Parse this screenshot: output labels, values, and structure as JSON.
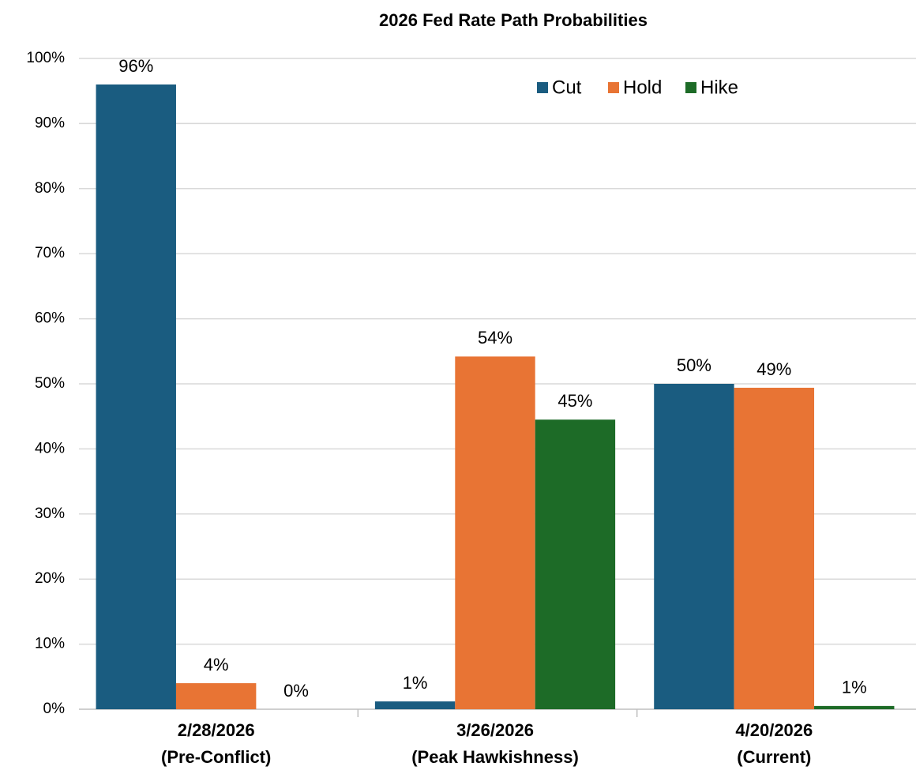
{
  "chart_data": {
    "type": "bar",
    "title": "2026 Fed Rate Path Probabilities",
    "categories": [
      "2/28/2026",
      "3/26/2026",
      "4/20/2026"
    ],
    "category_sublabels": [
      "(Pre-Conflict)",
      "(Peak Hawkishness)",
      "(Current)"
    ],
    "series": [
      {
        "name": "Cut",
        "color": "#1a5c80",
        "values": [
          96,
          1.2,
          50
        ],
        "value_labels": [
          "96%",
          "1%",
          "50%"
        ]
      },
      {
        "name": "Hold",
        "color": "#e87434",
        "values": [
          4,
          54.2,
          49.4
        ],
        "value_labels": [
          "4%",
          "54%",
          "49%"
        ]
      },
      {
        "name": "Hike",
        "color": "#1d6b27",
        "values": [
          0,
          44.5,
          0.5
        ],
        "value_labels": [
          "0%",
          "45%",
          "1%"
        ]
      }
    ],
    "ylim": [
      0,
      100
    ],
    "yticks": [
      {
        "value": 0,
        "label": "0%"
      },
      {
        "value": 10,
        "label": "10%"
      },
      {
        "value": 20,
        "label": "20%"
      },
      {
        "value": 30,
        "label": "30%"
      },
      {
        "value": 40,
        "label": "40%"
      },
      {
        "value": 50,
        "label": "50%"
      },
      {
        "value": 60,
        "label": "60%"
      },
      {
        "value": 70,
        "label": "70%"
      },
      {
        "value": 80,
        "label": "80%"
      },
      {
        "value": 90,
        "label": "90%"
      },
      {
        "value": 100,
        "label": "100%"
      }
    ],
    "grid": true,
    "legend": "top-right"
  }
}
